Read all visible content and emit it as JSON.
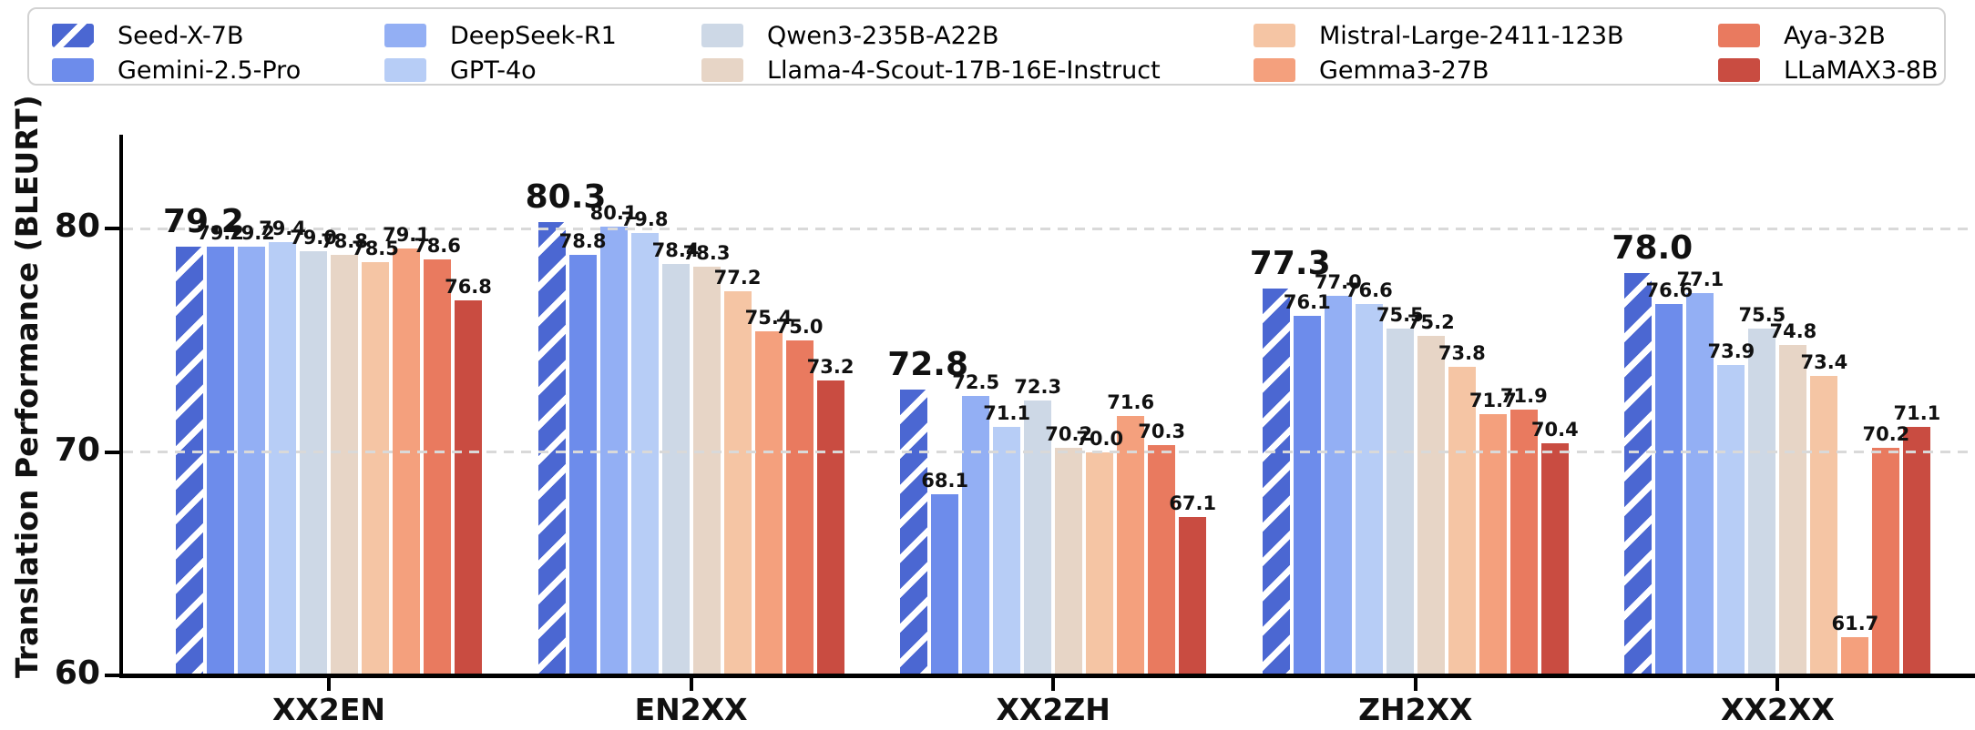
{
  "chart_data": {
    "type": "bar",
    "title": "",
    "ylabel": "Translation Performance (BLEURT)",
    "xlabel": "",
    "categories": [
      "XX2EN",
      "EN2XX",
      "XX2ZH",
      "ZH2XX",
      "XX2XX"
    ],
    "yticks": [
      60,
      70,
      80
    ],
    "ylim": [
      60,
      84
    ],
    "grid": "horizontal dashed gridlines at 70 and 80, drawn over bars",
    "legend_position": "top, 5 columns x 2 rows, boxed",
    "value_labels": "each bar labeled with one decimal; first series labeled larger",
    "series": [
      {
        "name": "Seed-X-7B",
        "color": "#4B67D2",
        "hatch": "/",
        "label_style": "large",
        "values": [
          79.2,
          80.3,
          72.8,
          77.3,
          78.0
        ]
      },
      {
        "name": "Gemini-2.5-Pro",
        "color": "#6D8CEB",
        "values": [
          79.2,
          78.8,
          68.1,
          76.1,
          76.6
        ]
      },
      {
        "name": "DeepSeek-R1",
        "color": "#93AFF4",
        "values": [
          79.2,
          80.1,
          72.5,
          77.0,
          77.1
        ]
      },
      {
        "name": "GPT-4o",
        "color": "#B7CDF6",
        "values": [
          79.4,
          79.8,
          71.1,
          76.6,
          73.9
        ]
      },
      {
        "name": "Qwen3-235B-A22B",
        "color": "#CDD8E6",
        "values": [
          79.0,
          78.4,
          72.3,
          75.5,
          75.5
        ]
      },
      {
        "name": "Llama-4-Scout-17B-16E-Instruct",
        "color": "#E7D5C6",
        "values": [
          78.8,
          78.3,
          70.2,
          75.2,
          74.8
        ]
      },
      {
        "name": "Mistral-Large-2411-123B",
        "color": "#F5C5A4",
        "values": [
          78.5,
          77.2,
          70.0,
          73.8,
          73.4
        ]
      },
      {
        "name": "Gemma3-27B",
        "color": "#F4A07D",
        "values": [
          79.1,
          75.4,
          71.6,
          71.7,
          61.7
        ]
      },
      {
        "name": "Aya-32B",
        "color": "#E97A5F",
        "values": [
          78.6,
          75.0,
          70.3,
          71.9,
          70.2
        ]
      },
      {
        "name": "LLaMAX3-8B",
        "color": "#C94C41",
        "values": [
          76.8,
          73.2,
          67.1,
          70.4,
          71.1
        ]
      }
    ]
  }
}
